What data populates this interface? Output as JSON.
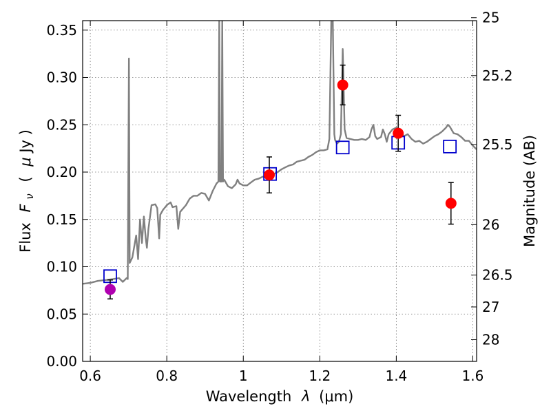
{
  "chart_data": {
    "type": "scatter",
    "xlabel": "Wavelength",
    "xlabel_symbol": "λ",
    "xlabel_unit": "(μm)",
    "ylabel": "Flux",
    "ylabel_symbol": "F",
    "ylabel_sub": "ν",
    "ylabel_unit_open": "(",
    "ylabel_unit_mu": "μ",
    "ylabel_unit_rest": "Jy )",
    "y2label": "Magnitude (AB)",
    "xlim": [
      0.58,
      1.61
    ],
    "ylim": [
      0.0,
      0.36
    ],
    "grid": true,
    "x_ticks": [
      {
        "value": 0.6,
        "label": "0.6"
      },
      {
        "value": 0.8,
        "label": "0.8"
      },
      {
        "value": 1.0,
        "label": "1"
      },
      {
        "value": 1.2,
        "label": "1.2"
      },
      {
        "value": 1.4,
        "label": "1.4"
      },
      {
        "value": 1.6,
        "label": "1.6"
      }
    ],
    "y_ticks": [
      {
        "value": 0.0,
        "label": "0.00"
      },
      {
        "value": 0.05,
        "label": "0.05"
      },
      {
        "value": 0.1,
        "label": "0.10"
      },
      {
        "value": 0.15,
        "label": "0.15"
      },
      {
        "value": 0.2,
        "label": "0.20"
      },
      {
        "value": 0.25,
        "label": "0.25"
      },
      {
        "value": 0.3,
        "label": "0.30"
      },
      {
        "value": 0.35,
        "label": "0.35"
      }
    ],
    "y2_ticks": [
      {
        "flux": 0.3631,
        "label": "25"
      },
      {
        "flux": 0.302,
        "label": "25.2"
      },
      {
        "flux": 0.2291,
        "label": "25.5"
      },
      {
        "flux": 0.1445,
        "label": "26"
      },
      {
        "flux": 0.0912,
        "label": "26.5"
      },
      {
        "flux": 0.0575,
        "label": "27"
      },
      {
        "flux": 0.0229,
        "label": "28"
      }
    ],
    "series": [
      {
        "type": "line",
        "color": "#808080",
        "points": [
          [
            0.58,
            0.082
          ],
          [
            0.6,
            0.083
          ],
          [
            0.62,
            0.085
          ],
          [
            0.64,
            0.086
          ],
          [
            0.66,
            0.087
          ],
          [
            0.675,
            0.088
          ],
          [
            0.685,
            0.084
          ],
          [
            0.695,
            0.088
          ],
          [
            0.698,
            0.087
          ],
          [
            0.701,
            0.32
          ],
          [
            0.703,
            0.104
          ],
          [
            0.71,
            0.11
          ],
          [
            0.72,
            0.133
          ],
          [
            0.725,
            0.108
          ],
          [
            0.73,
            0.15
          ],
          [
            0.735,
            0.125
          ],
          [
            0.74,
            0.153
          ],
          [
            0.745,
            0.13
          ],
          [
            0.748,
            0.12
          ],
          [
            0.752,
            0.14
          ],
          [
            0.76,
            0.165
          ],
          [
            0.77,
            0.166
          ],
          [
            0.775,
            0.162
          ],
          [
            0.78,
            0.13
          ],
          [
            0.783,
            0.155
          ],
          [
            0.79,
            0.16
          ],
          [
            0.8,
            0.165
          ],
          [
            0.81,
            0.168
          ],
          [
            0.815,
            0.163
          ],
          [
            0.825,
            0.164
          ],
          [
            0.83,
            0.14
          ],
          [
            0.835,
            0.158
          ],
          [
            0.85,
            0.165
          ],
          [
            0.86,
            0.172
          ],
          [
            0.87,
            0.175
          ],
          [
            0.88,
            0.175
          ],
          [
            0.89,
            0.178
          ],
          [
            0.9,
            0.177
          ],
          [
            0.91,
            0.17
          ],
          [
            0.92,
            0.18
          ],
          [
            0.93,
            0.188
          ],
          [
            0.935,
            0.19
          ],
          [
            0.937,
            0.36
          ],
          [
            0.939,
            0.19
          ],
          [
            0.943,
            0.19
          ],
          [
            0.945,
            0.36
          ],
          [
            0.947,
            0.19
          ],
          [
            0.95,
            0.192
          ],
          [
            0.96,
            0.185
          ],
          [
            0.97,
            0.183
          ],
          [
            0.98,
            0.187
          ],
          [
            0.985,
            0.192
          ],
          [
            0.99,
            0.188
          ],
          [
            1.0,
            0.186
          ],
          [
            1.01,
            0.186
          ],
          [
            1.02,
            0.189
          ],
          [
            1.03,
            0.192
          ],
          [
            1.04,
            0.193
          ],
          [
            1.05,
            0.195
          ],
          [
            1.06,
            0.196
          ],
          [
            1.07,
            0.197
          ],
          [
            1.08,
            0.198
          ],
          [
            1.09,
            0.2
          ],
          [
            1.1,
            0.203
          ],
          [
            1.11,
            0.205
          ],
          [
            1.12,
            0.207
          ],
          [
            1.13,
            0.208
          ],
          [
            1.14,
            0.211
          ],
          [
            1.15,
            0.212
          ],
          [
            1.16,
            0.213
          ],
          [
            1.17,
            0.216
          ],
          [
            1.18,
            0.218
          ],
          [
            1.19,
            0.221
          ],
          [
            1.2,
            0.223
          ],
          [
            1.21,
            0.223
          ],
          [
            1.22,
            0.224
          ],
          [
            1.225,
            0.235
          ],
          [
            1.23,
            0.36
          ],
          [
            1.234,
            0.36
          ],
          [
            1.238,
            0.24
          ],
          [
            1.24,
            0.234
          ],
          [
            1.245,
            0.23
          ],
          [
            1.25,
            0.232
          ],
          [
            1.255,
            0.24
          ],
          [
            1.26,
            0.33
          ],
          [
            1.265,
            0.245
          ],
          [
            1.27,
            0.236
          ],
          [
            1.28,
            0.235
          ],
          [
            1.29,
            0.234
          ],
          [
            1.3,
            0.234
          ],
          [
            1.31,
            0.235
          ],
          [
            1.32,
            0.234
          ],
          [
            1.33,
            0.237
          ],
          [
            1.335,
            0.245
          ],
          [
            1.34,
            0.25
          ],
          [
            1.345,
            0.238
          ],
          [
            1.35,
            0.235
          ],
          [
            1.36,
            0.237
          ],
          [
            1.365,
            0.245
          ],
          [
            1.37,
            0.24
          ],
          [
            1.375,
            0.232
          ],
          [
            1.38,
            0.24
          ],
          [
            1.39,
            0.245
          ],
          [
            1.4,
            0.247
          ],
          [
            1.41,
            0.243
          ],
          [
            1.42,
            0.238
          ],
          [
            1.43,
            0.24
          ],
          [
            1.44,
            0.235
          ],
          [
            1.45,
            0.232
          ],
          [
            1.46,
            0.233
          ],
          [
            1.47,
            0.23
          ],
          [
            1.48,
            0.232
          ],
          [
            1.49,
            0.235
          ],
          [
            1.5,
            0.238
          ],
          [
            1.51,
            0.24
          ],
          [
            1.52,
            0.243
          ],
          [
            1.53,
            0.247
          ],
          [
            1.535,
            0.25
          ],
          [
            1.54,
            0.248
          ],
          [
            1.55,
            0.241
          ],
          [
            1.56,
            0.24
          ],
          [
            1.57,
            0.237
          ],
          [
            1.58,
            0.233
          ],
          [
            1.59,
            0.233
          ],
          [
            1.6,
            0.228
          ],
          [
            1.61,
            0.224
          ]
        ]
      },
      {
        "type": "points",
        "marker": "open-square",
        "color": "#0000cc",
        "points": [
          [
            0.652,
            0.09
          ],
          [
            1.07,
            0.198
          ],
          [
            1.26,
            0.226
          ],
          [
            1.405,
            0.231
          ],
          [
            1.54,
            0.227
          ]
        ]
      },
      {
        "type": "points",
        "marker": "circle",
        "color": "#ff0000",
        "points": [
          {
            "x": 1.068,
            "y": 0.197,
            "yerr": 0.019
          },
          {
            "x": 1.26,
            "y": 0.292,
            "yerr": 0.021
          },
          {
            "x": 1.405,
            "y": 0.241,
            "yerr": 0.019
          },
          {
            "x": 1.543,
            "y": 0.167,
            "yerr": 0.022
          }
        ]
      },
      {
        "type": "points",
        "marker": "circle",
        "color": "#b000b0",
        "points": [
          {
            "x": 0.652,
            "y": 0.076,
            "yerr": 0.01
          }
        ]
      }
    ]
  }
}
